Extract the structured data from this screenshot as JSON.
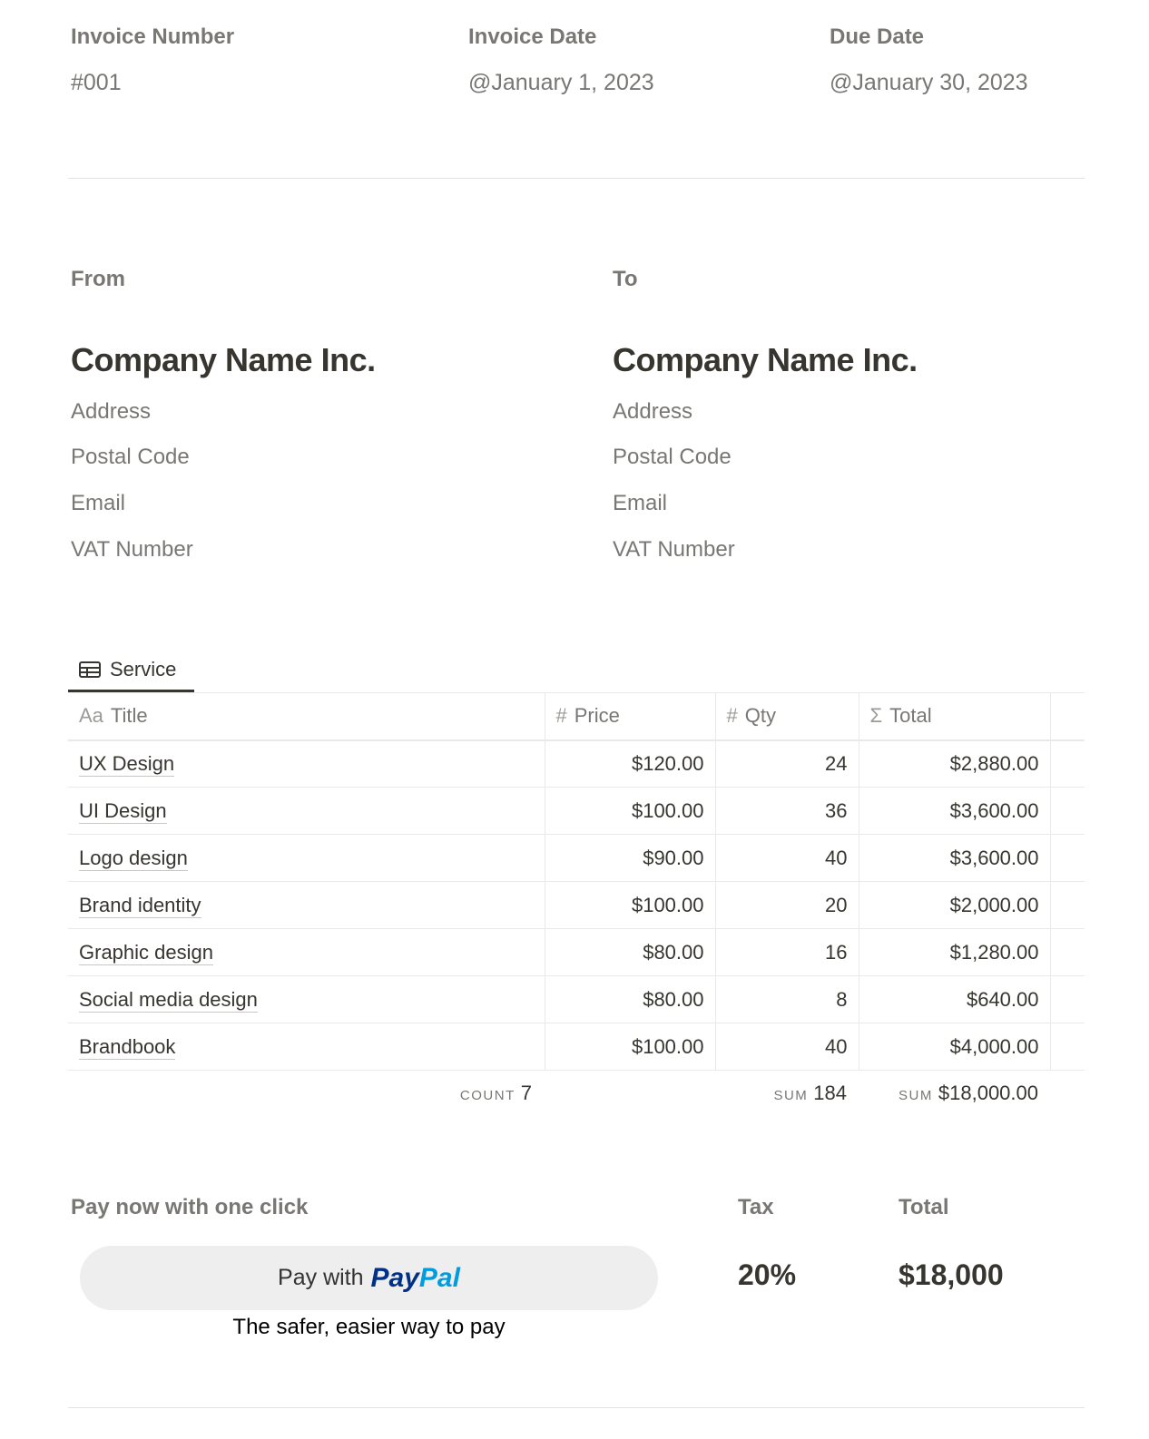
{
  "header": {
    "invoice_number_label": "Invoice Number",
    "invoice_number": "#001",
    "invoice_date_label": "Invoice Date",
    "invoice_date": "@January 1, 2023",
    "due_date_label": "Due Date",
    "due_date": "@January 30, 2023"
  },
  "from": {
    "label": "From",
    "company": "Company Name Inc.",
    "address": "Address",
    "postal": "Postal Code",
    "email": "Email",
    "vat": "VAT Number"
  },
  "to": {
    "label": "To",
    "company": "Company Name Inc.",
    "address": "Address",
    "postal": "Postal Code",
    "email": "Email",
    "vat": "VAT Number"
  },
  "table": {
    "tab_label": "Service",
    "tab_icon": "table-icon",
    "columns": [
      {
        "icon": "Aa",
        "label": "Title"
      },
      {
        "icon": "#",
        "label": "Price"
      },
      {
        "icon": "#",
        "label": "Qty"
      },
      {
        "icon": "Σ",
        "label": "Total"
      }
    ],
    "rows": [
      [
        "UX Design",
        "$120.00",
        "24",
        "$2,880.00"
      ],
      [
        "UI Design",
        "$100.00",
        "36",
        "$3,600.00"
      ],
      [
        "Logo design",
        "$90.00",
        "40",
        "$3,600.00"
      ],
      [
        "Brand identity",
        "$100.00",
        "20",
        "$2,000.00"
      ],
      [
        "Graphic design",
        "$80.00",
        "16",
        "$1,280.00"
      ],
      [
        "Social media design",
        "$80.00",
        "8",
        "$640.00"
      ],
      [
        "Brandbook",
        "$100.00",
        "40",
        "$4,000.00"
      ]
    ],
    "footer": {
      "count_label": "COUNT",
      "count": "7",
      "qty_sum_label": "SUM",
      "qty_sum": "184",
      "total_sum_label": "SUM",
      "total_sum": "$18,000.00"
    }
  },
  "payment": {
    "label": "Pay now with one click",
    "button_prefix": "Pay with",
    "brand_pay": "Pay",
    "brand_pal": "Pal",
    "tagline": "The safer, easier way to pay",
    "brand_colors": {
      "pay": "#003087",
      "pal": "#009cde"
    }
  },
  "totals": {
    "tax_label": "Tax",
    "tax": "20%",
    "total_label": "Total",
    "total": "$18,000"
  }
}
